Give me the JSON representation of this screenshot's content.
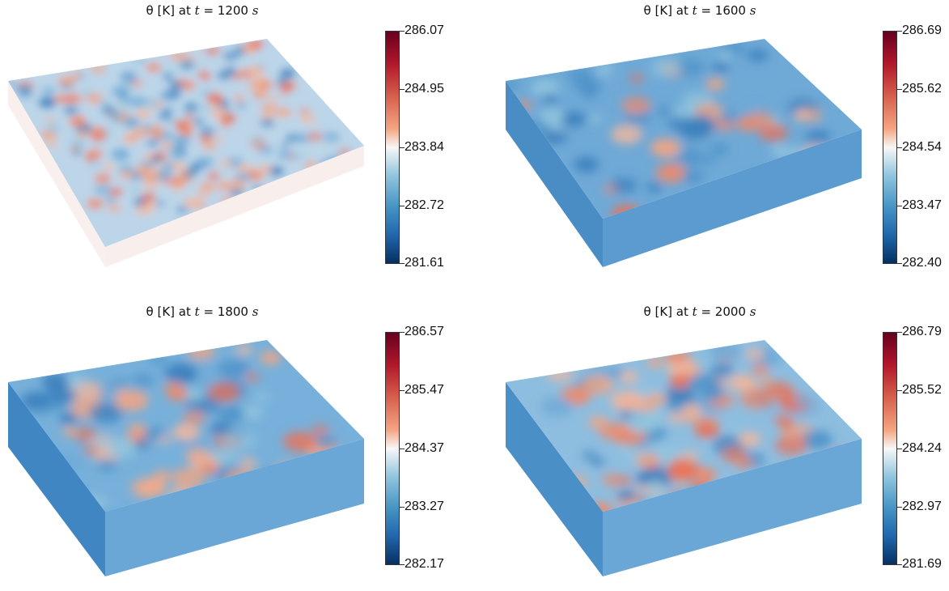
{
  "panels": [
    {
      "title_prefix": "θ [K] at ",
      "t_var": "t",
      "title_eq": " = 1200 ",
      "unit": "s",
      "ticks": [
        "286.07",
        "284.95",
        "283.84",
        "282.72",
        "281.61"
      ]
    },
    {
      "title_prefix": "θ [K] at ",
      "t_var": "t",
      "title_eq": " = 1600 ",
      "unit": "s",
      "ticks": [
        "286.69",
        "285.62",
        "284.54",
        "283.47",
        "282.40"
      ]
    },
    {
      "title_prefix": "θ [K] at ",
      "t_var": "t",
      "title_eq": " = 1800 ",
      "unit": "s",
      "ticks": [
        "286.57",
        "285.47",
        "284.37",
        "283.27",
        "282.17"
      ]
    },
    {
      "title_prefix": "θ [K] at ",
      "t_var": "t",
      "title_eq": " = 2000 ",
      "unit": "s",
      "ticks": [
        "286.79",
        "285.52",
        "284.24",
        "282.97",
        "281.69"
      ]
    }
  ],
  "colormap": [
    "#67001f",
    "#b2182b",
    "#d6604d",
    "#f4a582",
    "#f7f7f7",
    "#92c5de",
    "#4393c3",
    "#2166ac",
    "#053061"
  ]
}
